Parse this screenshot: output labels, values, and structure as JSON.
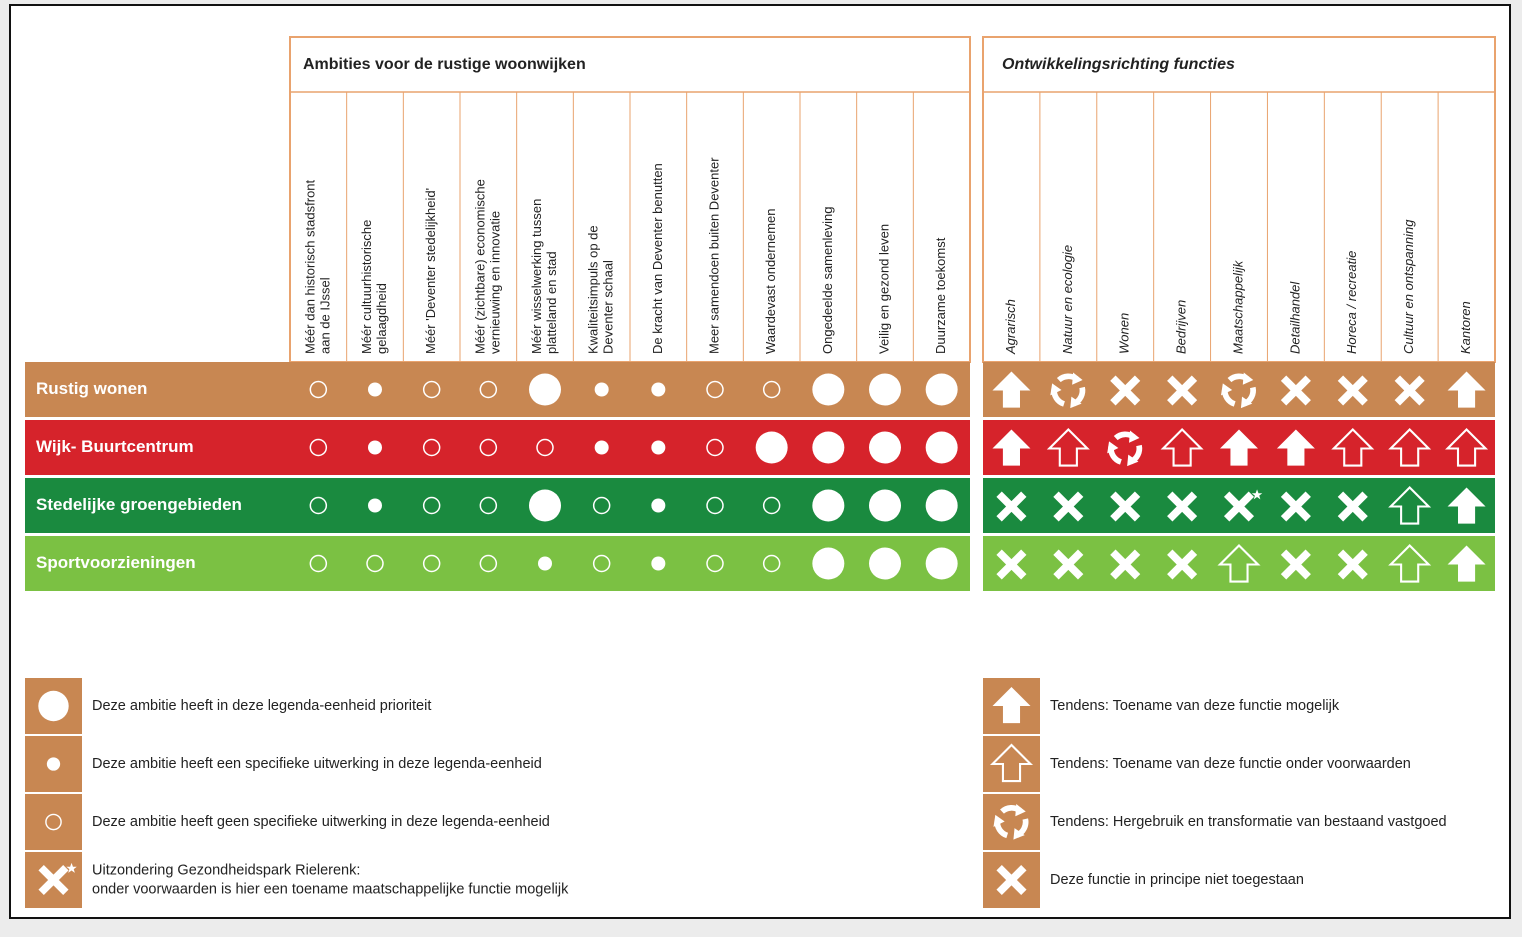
{
  "ambities": {
    "title": "Ambities voor de rustige woonwijken",
    "columns": [
      [
        "Méér dan historisch stadsfront",
        "aan de IJssel"
      ],
      [
        "Méér cultuurhistorische",
        "gelaagdheid"
      ],
      [
        "Méér 'Deventer stedelijkheid'"
      ],
      [
        "Méér (zichtbare) economische",
        "vernieuwing en innovatie"
      ],
      [
        "Méér wisselwerking tussen",
        "platteland en stad"
      ],
      [
        "Kwaliteitsimpuls op de",
        "Deventer schaal"
      ],
      [
        "De kracht van Deventer benutten"
      ],
      [
        "Meer samendoen buiten Deventer"
      ],
      [
        "Waardevast ondernemen"
      ],
      [
        "Ongedeelde samenleving"
      ],
      [
        "Veilig en gezond leven"
      ],
      [
        "Duurzame toekomst"
      ]
    ]
  },
  "functies": {
    "title": "Ontwikkelingsrichting functies",
    "columns": [
      "Agrarisch",
      "Natuur en ecologie",
      "Wonen",
      "Bedrijven",
      "Maatschappelijk",
      "Detailhandel",
      "Horeca / recreatie",
      "Cultuur en ontspanning",
      "Kantoren"
    ]
  },
  "rows": [
    {
      "label": "Rustig wonen",
      "color": "#c88752",
      "ambities": [
        "open",
        "small",
        "open",
        "open",
        "large",
        "small",
        "small",
        "open",
        "open",
        "large",
        "large",
        "large"
      ],
      "functies": [
        "up",
        "recycle",
        "cross",
        "cross",
        "recycle",
        "cross",
        "cross",
        "cross",
        "up"
      ]
    },
    {
      "label": "Wijk- Buurtcentrum",
      "color": "#d6232b",
      "ambities": [
        "open",
        "small",
        "open",
        "open",
        "open",
        "small",
        "small",
        "open",
        "large",
        "large",
        "large",
        "large"
      ],
      "functies": [
        "up",
        "up-outline",
        "recycle",
        "up-outline",
        "up",
        "up",
        "up-outline",
        "up-outline",
        "up-outline"
      ]
    },
    {
      "label": "Stedelijke groengebieden",
      "color": "#1a8a3f",
      "ambities": [
        "open",
        "small",
        "open",
        "open",
        "large",
        "open",
        "small",
        "open",
        "open",
        "large",
        "large",
        "large"
      ],
      "functies": [
        "cross",
        "cross",
        "cross",
        "cross",
        "cross-star",
        "cross",
        "cross",
        "up-outline",
        "up"
      ]
    },
    {
      "label": "Sportvoorzieningen",
      "color": "#7bc143",
      "ambities": [
        "open",
        "open",
        "open",
        "open",
        "small",
        "open",
        "small",
        "open",
        "open",
        "large",
        "large",
        "large"
      ],
      "functies": [
        "cross",
        "cross",
        "cross",
        "cross",
        "up-outline",
        "cross",
        "cross",
        "up-outline",
        "up"
      ]
    }
  ],
  "legend": {
    "color": "#c88752",
    "left": [
      {
        "symbol": "large",
        "lines": [
          "Deze ambitie heeft in deze legenda-eenheid prioriteit"
        ]
      },
      {
        "symbol": "small",
        "lines": [
          "Deze ambitie heeft een specifieke uitwerking in deze legenda-eenheid"
        ]
      },
      {
        "symbol": "open",
        "lines": [
          "Deze ambitie heeft geen specifieke uitwerking in deze legenda-eenheid"
        ]
      },
      {
        "symbol": "cross-star",
        "lines": [
          "Uitzondering Gezondheidspark Rielerenk:",
          "onder voorwaarden is hier een toename maatschappelijke functie mogelijk"
        ]
      }
    ],
    "right": [
      {
        "symbol": "up",
        "lines": [
          "Tendens: Toename van deze functie mogelijk"
        ]
      },
      {
        "symbol": "up-outline",
        "lines": [
          "Tendens: Toename van deze functie onder voorwaarden"
        ]
      },
      {
        "symbol": "recycle",
        "lines": [
          "Tendens: Hergebruik en transformatie van bestaand vastgoed"
        ]
      },
      {
        "symbol": "cross",
        "lines": [
          "Deze functie in principe niet toegestaan"
        ]
      }
    ]
  }
}
